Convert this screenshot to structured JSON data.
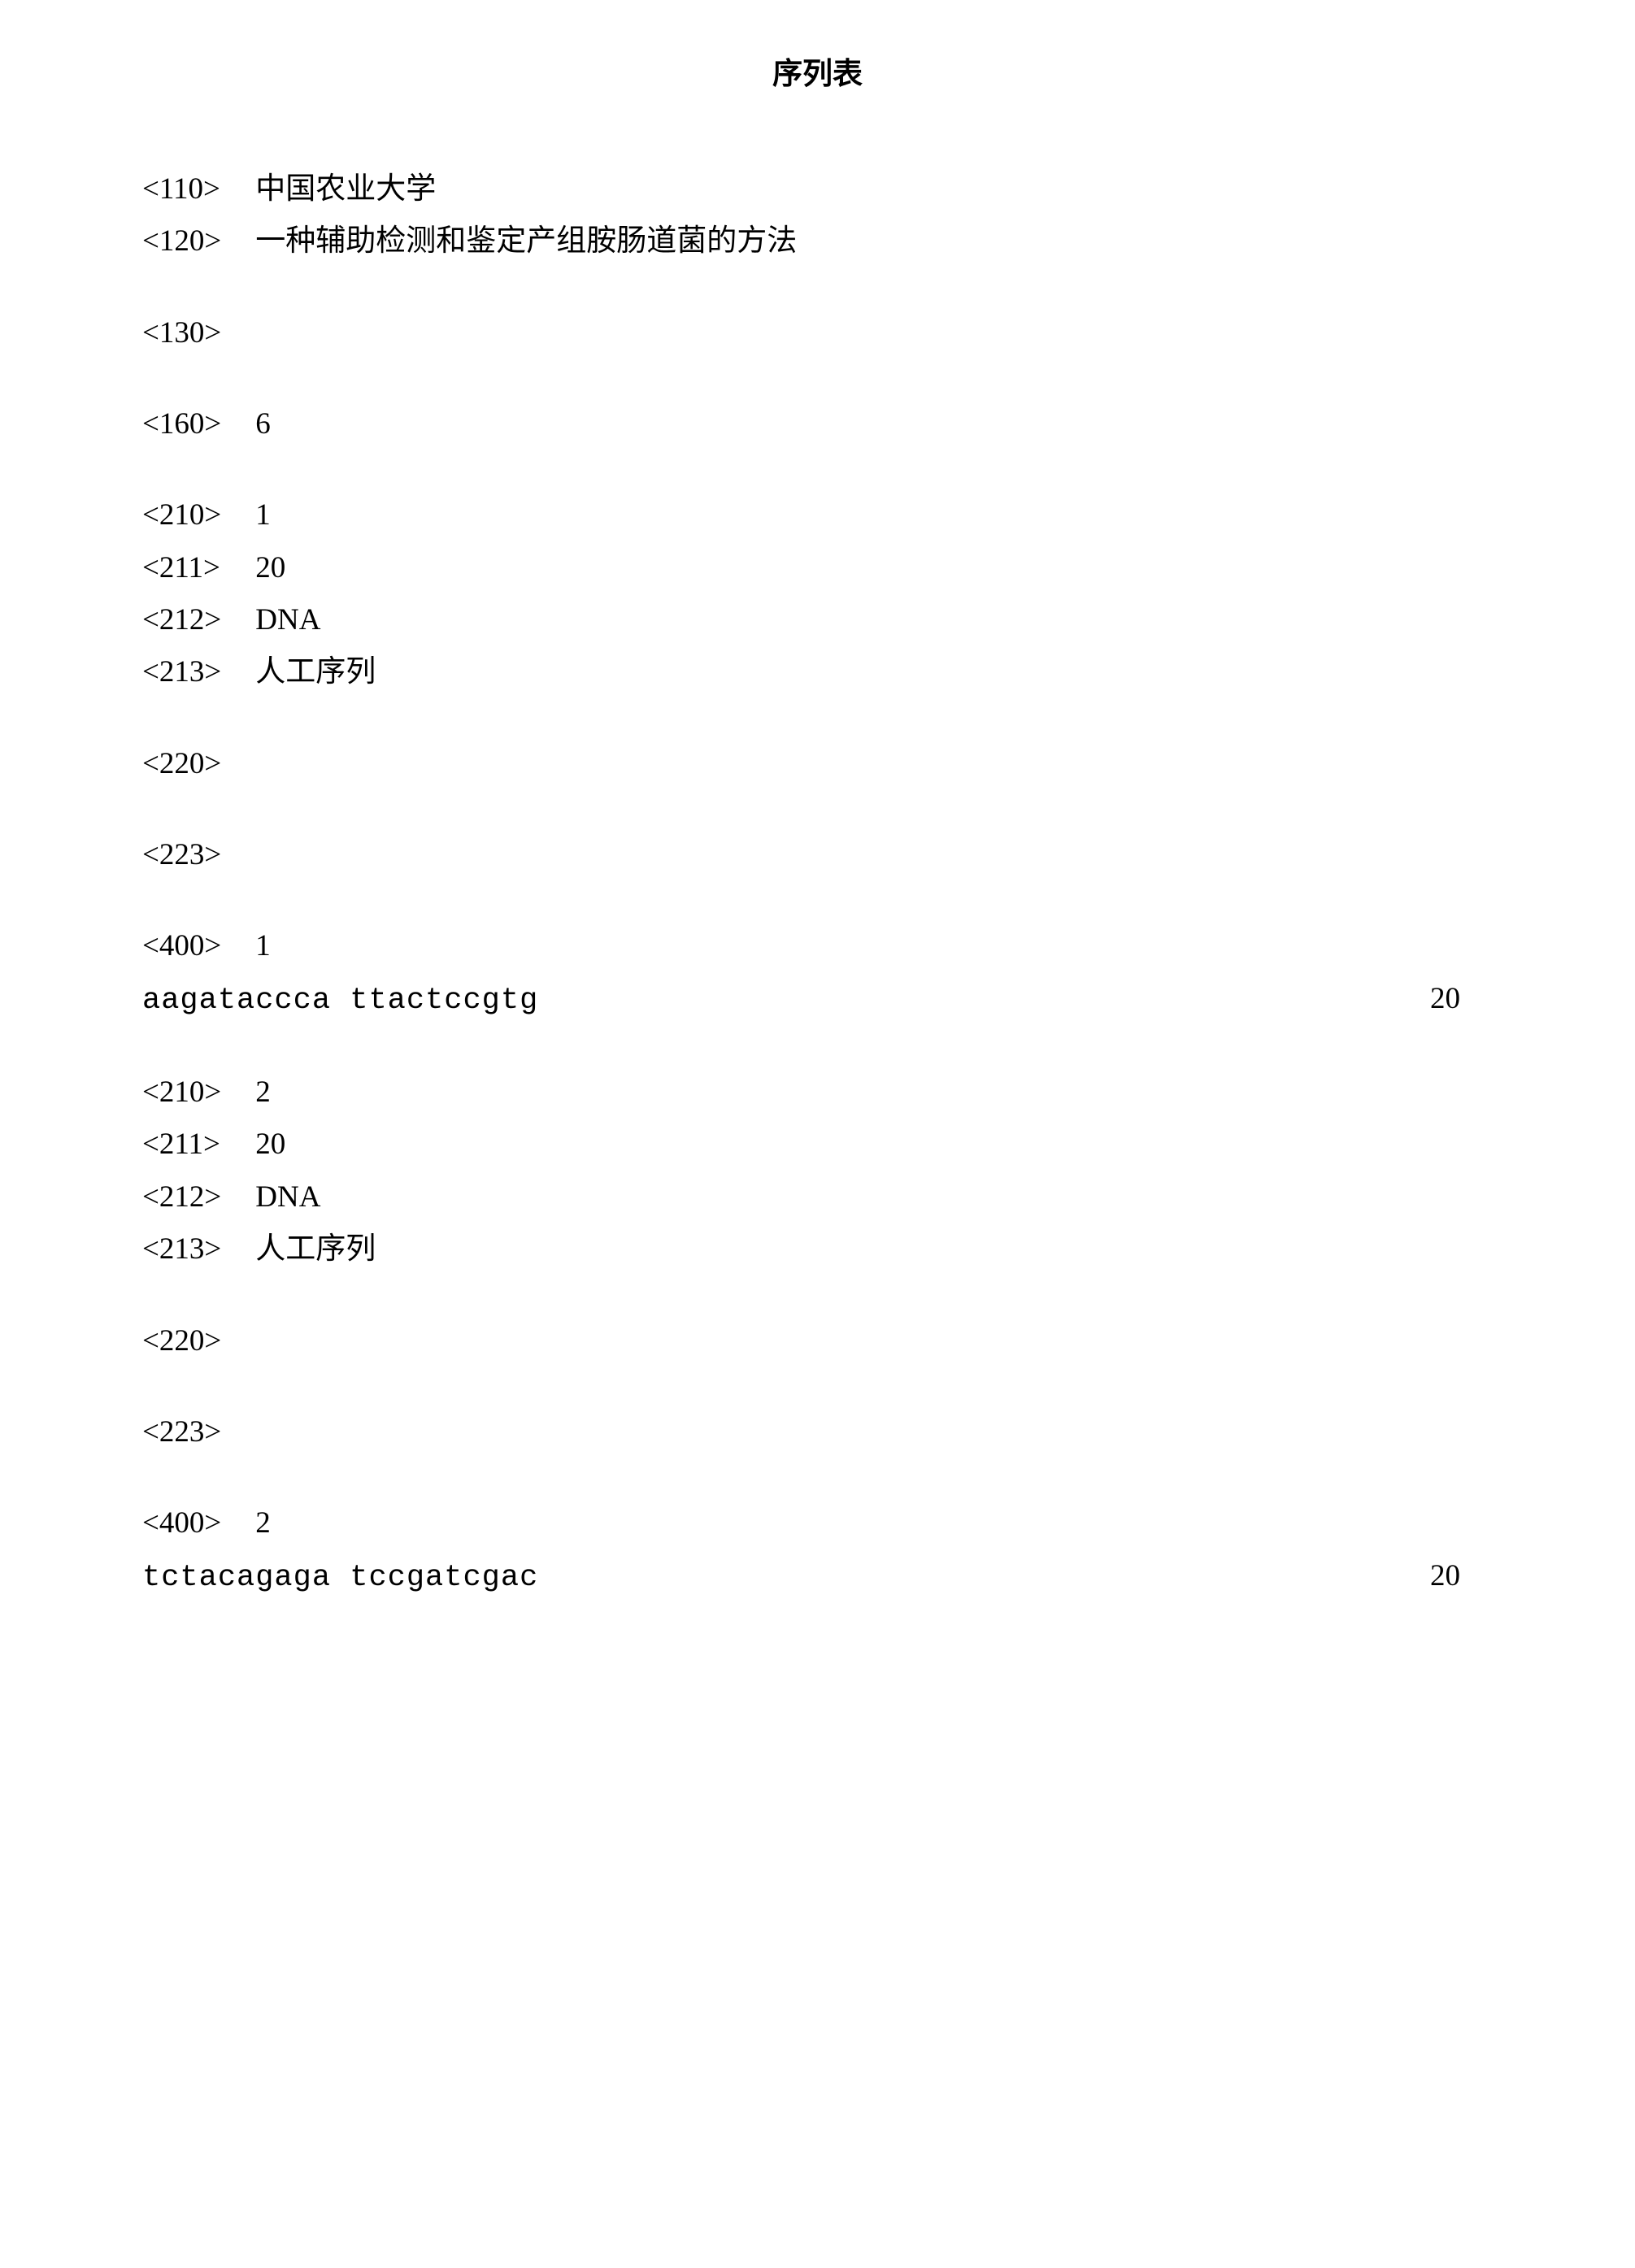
{
  "title": "序列表",
  "header": {
    "110": {
      "tag": "<110>",
      "value": "中国农业大学"
    },
    "120": {
      "tag": "<120>",
      "value": "一种辅助检测和鉴定产组胺肠道菌的方法"
    },
    "130": {
      "tag": "<130>",
      "value": ""
    },
    "160": {
      "tag": "<160>",
      "value": "6"
    }
  },
  "seq1": {
    "210": {
      "tag": "<210>",
      "value": "1"
    },
    "211": {
      "tag": "<211>",
      "value": "20"
    },
    "212": {
      "tag": "<212>",
      "value": "DNA"
    },
    "213": {
      "tag": "<213>",
      "value": "人工序列"
    },
    "220": {
      "tag": "<220>",
      "value": ""
    },
    "223": {
      "tag": "<223>",
      "value": ""
    },
    "400": {
      "tag": "<400>",
      "value": "1"
    },
    "sequence": "aagataccca ttactccgtg",
    "seqcount": "20"
  },
  "seq2": {
    "210": {
      "tag": "<210>",
      "value": "2"
    },
    "211": {
      "tag": "<211>",
      "value": "20"
    },
    "212": {
      "tag": "<212>",
      "value": "DNA"
    },
    "213": {
      "tag": "<213>",
      "value": "人工序列"
    },
    "220": {
      "tag": "<220>",
      "value": ""
    },
    "223": {
      "tag": "<223>",
      "value": ""
    },
    "400": {
      "tag": "<400>",
      "value": "2"
    },
    "sequence": "tctacagaga tccgatcgac",
    "seqcount": "20"
  }
}
